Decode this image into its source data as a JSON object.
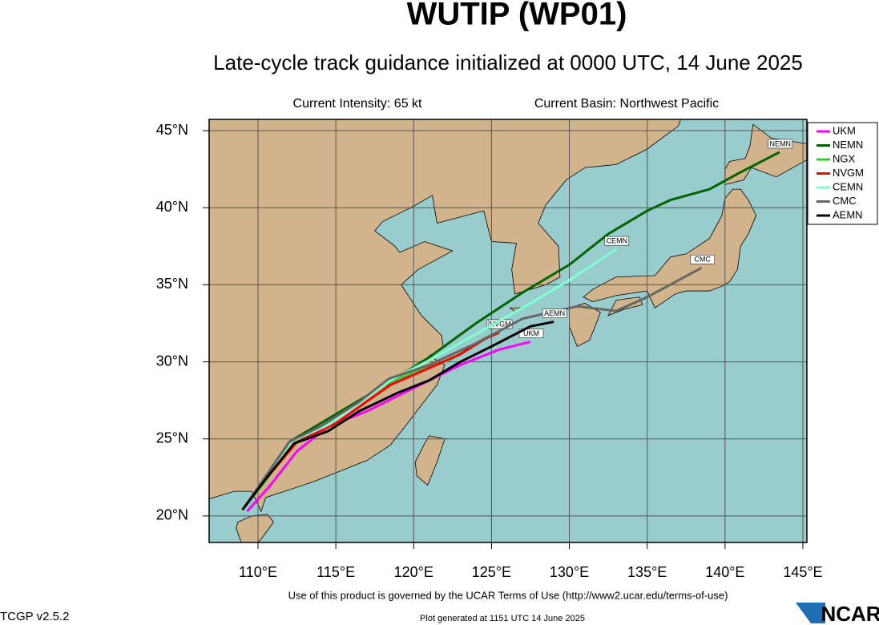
{
  "title": "WUTIP (WP01)",
  "subtitle": "Late-cycle track guidance initialized at 0000 UTC, 14 June 2025",
  "current_intensity": "Current Intensity: 65 kt",
  "current_basin": "Current Basin: Northwest Pacific",
  "terms": "Use of this product is governed by the UCAR Terms of Use (http://www2.ucar.edu/terms-of-use)",
  "version": "TCGP v2.5.2",
  "generated": "Plot generated at 1151 UTC   14 June 2025",
  "logo": "NCAR",
  "chart_data": {
    "type": "line",
    "xlim": [
      106.86,
      145.26
    ],
    "ylim": [
      18.28,
      45.73
    ],
    "xticks": [
      {
        "value": 110,
        "label": "110°E"
      },
      {
        "value": 115,
        "label": "115°E"
      },
      {
        "value": 120,
        "label": "120°E"
      },
      {
        "value": 125,
        "label": "125°E"
      },
      {
        "value": 130,
        "label": "130°E"
      },
      {
        "value": 135,
        "label": "135°E"
      },
      {
        "value": 140,
        "label": "140°E"
      },
      {
        "value": 145,
        "label": "145°E"
      }
    ],
    "yticks": [
      {
        "value": 20,
        "label": "20°N"
      },
      {
        "value": 25,
        "label": "25°N"
      },
      {
        "value": 30,
        "label": "30°N"
      },
      {
        "value": 35,
        "label": "35°N"
      },
      {
        "value": 40,
        "label": "40°N"
      },
      {
        "value": 45,
        "label": "45°N"
      }
    ],
    "grid": true,
    "legend": "right",
    "series": [
      {
        "name": "UKM",
        "color": "#ff00ff",
        "x": [
          109.3,
          110.8,
          112.5,
          114.5,
          117,
          120,
          123,
          125.5,
          127.5
        ],
        "values": [
          20.3,
          22.0,
          24.2,
          25.8,
          26.8,
          28.3,
          29.8,
          30.8,
          31.3
        ]
      },
      {
        "name": "NEMN",
        "color": "#006400",
        "x": [
          109,
          110.5,
          112,
          114,
          116,
          118.5,
          121,
          124,
          127,
          130,
          132.5,
          135,
          136.5,
          139,
          141,
          143.5
        ],
        "values": [
          20.4,
          22.5,
          24.8,
          26,
          27.2,
          28.7,
          30.3,
          32.5,
          34.5,
          36.3,
          38.3,
          39.8,
          40.5,
          41.2,
          42.3,
          43.6
        ]
      },
      {
        "name": "NGX",
        "color": "#32cd32",
        "x": [
          109,
          110.5,
          112,
          114,
          116,
          118.3,
          120.5,
          122.5,
          124.5,
          125.4
        ],
        "values": [
          20.4,
          22.3,
          24.5,
          25.8,
          27,
          28.6,
          29.5,
          30.2,
          31.5,
          31.9
        ]
      },
      {
        "name": "NVGM",
        "color": "#ff0000",
        "x": [
          109,
          110.5,
          112.5,
          115,
          117.5,
          118.5,
          121,
          123,
          124.6,
          125.5
        ],
        "values": [
          20.4,
          22.4,
          24.8,
          26,
          27.8,
          28.5,
          29.6,
          30.5,
          31.5,
          31.9
        ]
      },
      {
        "name": "CEMN",
        "color": "#7fffd4",
        "x": [
          109,
          110.5,
          112.3,
          114.5,
          116.5,
          118.5,
          121,
          124,
          127,
          130,
          133
        ],
        "values": [
          20.4,
          22.4,
          24.9,
          25.9,
          27.3,
          28.8,
          30.1,
          31.8,
          33.5,
          35.3,
          37.3
        ]
      },
      {
        "name": "CMC",
        "color": "#666666",
        "x": [
          109,
          110.3,
          112,
          114,
          116.5,
          118.4,
          121,
          124,
          127,
          130.5,
          133,
          135,
          138.5
        ],
        "values": [
          20.4,
          22.3,
          24.8,
          25.8,
          27.4,
          28.9,
          29.8,
          31.2,
          32.8,
          33.6,
          33.3,
          34.2,
          36.1
        ]
      },
      {
        "name": "AEMN",
        "color": "#000000",
        "x": [
          109,
          110.5,
          112.3,
          114.5,
          116.5,
          119,
          121,
          123,
          125,
          127.5,
          129
        ],
        "values": [
          20.4,
          22.4,
          24.7,
          25.5,
          26.8,
          28,
          28.8,
          30,
          31,
          32.3,
          32.6
        ]
      }
    ]
  }
}
